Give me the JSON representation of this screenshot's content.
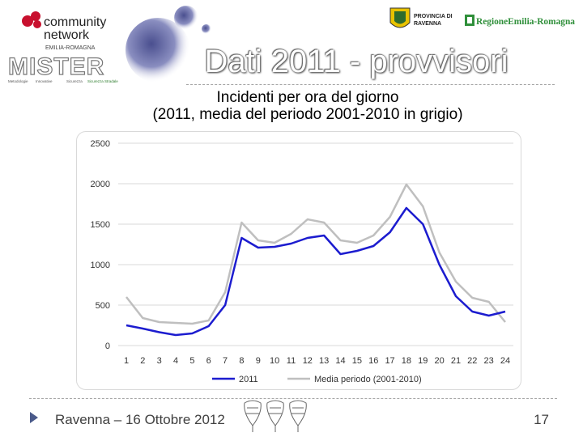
{
  "header": {
    "title": "Dati 2011 - provvisori",
    "community_logo_text": [
      "community",
      "network",
      "EMILIA-ROMAGNA"
    ],
    "mister_logo_text": "MISTER",
    "mister_logo_captions": [
      "Metodologie",
      "Innovative",
      "Sicurezza",
      "Sicurezza Stradale"
    ],
    "provincia_logo_text": [
      "PROVINCIA DI",
      "RAVENNA"
    ],
    "regione_logo_text": "RegioneEmilia-Romagna"
  },
  "chart_data": {
    "type": "line",
    "title": [
      "Incidenti per ora del giorno",
      "(2011, media del periodo 2001-2010 in grigio)"
    ],
    "xlabel": "",
    "ylabel": "",
    "categories": [
      "1",
      "2",
      "3",
      "4",
      "5",
      "6",
      "7",
      "8",
      "9",
      "10",
      "11",
      "12",
      "13",
      "14",
      "15",
      "16",
      "17",
      "18",
      "19",
      "20",
      "21",
      "22",
      "23",
      "24"
    ],
    "ylim": [
      0,
      2500
    ],
    "yticks": [
      "0",
      "500",
      "1000",
      "1500",
      "2000",
      "2500"
    ],
    "grid": "horizontal",
    "legend_position": "bottom",
    "series": [
      {
        "name": "2011",
        "color": "#1c1ccf",
        "values": [
          250,
          210,
          165,
          130,
          150,
          240,
          500,
          1330,
          1210,
          1220,
          1260,
          1330,
          1360,
          1130,
          1170,
          1230,
          1400,
          1700,
          1500,
          1000,
          610,
          420,
          370,
          420
        ]
      },
      {
        "name": "Media periodo (2001-2010)",
        "color": "#bfbfbf",
        "values": [
          600,
          340,
          290,
          280,
          270,
          310,
          660,
          1520,
          1300,
          1270,
          1380,
          1560,
          1520,
          1300,
          1270,
          1360,
          1590,
          1990,
          1720,
          1150,
          790,
          590,
          540,
          290
        ]
      }
    ]
  },
  "footer": {
    "location_date": "Ravenna – 16 Ottobre 2012",
    "page_number": "17"
  }
}
